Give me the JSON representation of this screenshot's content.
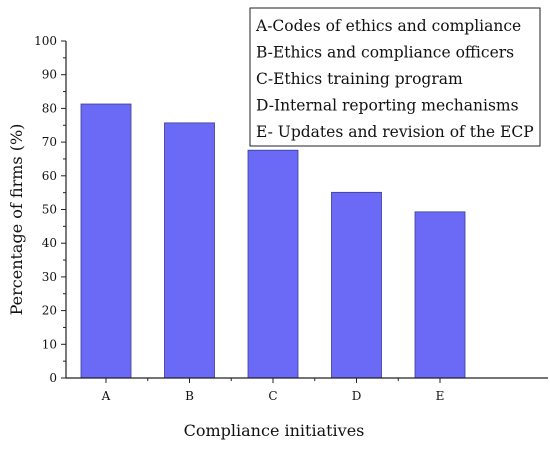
{
  "chart_data": {
    "type": "bar",
    "categories": [
      "A",
      "B",
      "C",
      "D",
      "E"
    ],
    "values": [
      81.3,
      75.7,
      67.6,
      55.1,
      49.3
    ],
    "xlabel": "Compliance initiatives",
    "ylabel": "Percentage of firms (%)",
    "ylim": [
      0,
      100
    ],
    "yticks": [
      0,
      10,
      20,
      30,
      40,
      50,
      60,
      70,
      80,
      90,
      100
    ],
    "grid": false,
    "bar_color": "#6a6af7",
    "legend_position": "top-right",
    "legend": [
      "A-Codes of ethics and compliance",
      "B-Ethics and compliance officers",
      "C-Ethics training program",
      "D-Internal reporting mechanisms",
      "E- Updates and revision of the ECP"
    ]
  }
}
